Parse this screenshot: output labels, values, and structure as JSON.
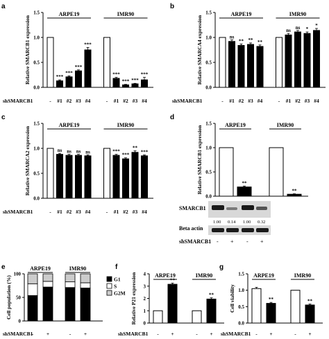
{
  "chart_data": [
    {
      "panel": "a",
      "type": "bar",
      "ylabel": "Relative SMARCB1 expression",
      "ylim": [
        0,
        1.5
      ],
      "yticks": [
        "0.0",
        "0.5",
        "1.0",
        "1.5"
      ],
      "xlabel_row": "shSMARCB1",
      "groups": [
        {
          "name": "ARPE19",
          "categories": [
            "-",
            "#1",
            "#2",
            "#3",
            "#4"
          ],
          "values": [
            1.0,
            0.13,
            0.21,
            0.33,
            0.75
          ],
          "errors": [
            0,
            0.02,
            0.02,
            0.02,
            0.05
          ],
          "annotations": [
            "",
            "***",
            "***",
            "***",
            "***"
          ]
        },
        {
          "name": "IMR90",
          "categories": [
            "-",
            "#1",
            "#2",
            "#3",
            "#4"
          ],
          "values": [
            1.0,
            0.18,
            0.05,
            0.07,
            0.15
          ],
          "errors": [
            0,
            0.02,
            0.01,
            0.01,
            0.05
          ],
          "annotations": [
            "",
            "***",
            "***",
            "***",
            "***"
          ]
        }
      ]
    },
    {
      "panel": "b",
      "type": "bar",
      "ylabel": "Relative SMARCA4 expression",
      "ylim": [
        0,
        1.5
      ],
      "yticks": [
        "0.0",
        "0.5",
        "1.0",
        "1.5"
      ],
      "xlabel_row": "shSMARCB1",
      "groups": [
        {
          "name": "ARPE19",
          "categories": [
            "-",
            "#1",
            "#2",
            "#3",
            "#4"
          ],
          "values": [
            1.0,
            0.92,
            0.84,
            0.86,
            0.82
          ],
          "errors": [
            0,
            0.03,
            0.03,
            0.03,
            0.03
          ],
          "annotations": [
            "",
            "ns",
            "**",
            "**",
            "**"
          ]
        },
        {
          "name": "IMR90",
          "categories": [
            "-",
            "#1",
            "#2",
            "#3",
            "#4"
          ],
          "values": [
            1.0,
            1.05,
            1.11,
            1.08,
            1.14
          ],
          "errors": [
            0,
            0.03,
            0.03,
            0.03,
            0.04
          ],
          "annotations": [
            "",
            "ns",
            "ns",
            "*",
            "*"
          ]
        }
      ]
    },
    {
      "panel": "c",
      "type": "bar",
      "ylabel": "Relative SMARCA2 expression",
      "ylim": [
        0,
        1.5
      ],
      "yticks": [
        "0.0",
        "0.5",
        "1.0",
        "1.5"
      ],
      "xlabel_row": "shSMARCB1",
      "groups": [
        {
          "name": "ARPE19",
          "categories": [
            "-",
            "#1",
            "#2",
            "#3",
            "#4"
          ],
          "values": [
            1.0,
            0.88,
            0.86,
            0.86,
            0.85
          ],
          "errors": [
            0,
            0.02,
            0.02,
            0.02,
            0.02
          ],
          "annotations": [
            "",
            "ns",
            "ns",
            "ns",
            "ns"
          ]
        },
        {
          "name": "IMR90",
          "categories": [
            "-",
            "#1",
            "#2",
            "#3",
            "#4"
          ],
          "values": [
            1.0,
            0.86,
            0.79,
            0.92,
            0.85
          ],
          "errors": [
            0,
            0.02,
            0.02,
            0.03,
            0.02
          ],
          "annotations": [
            "",
            "***",
            "***",
            "**",
            "***"
          ]
        }
      ]
    },
    {
      "panel": "d",
      "type": "bar",
      "ylabel": "Relative SMARCB1 expression",
      "ylim": [
        0,
        1.5
      ],
      "yticks": [
        "0.0",
        "0.5",
        "1.0",
        "1.5"
      ],
      "groups": [
        {
          "name": "ARPE19",
          "categories": [
            "-",
            "+"
          ],
          "values": [
            1.0,
            0.19
          ],
          "errors": [
            0,
            0.02
          ],
          "annotations": [
            "",
            "**"
          ]
        },
        {
          "name": "IMR90",
          "categories": [
            "-",
            "+"
          ],
          "values": [
            1.0,
            0.04
          ],
          "errors": [
            0,
            0.01
          ],
          "annotations": [
            "",
            "**"
          ]
        }
      ]
    },
    {
      "panel": "e",
      "type": "stacked_bar",
      "ylabel": "Cell population (%)",
      "ylim": [
        0,
        100
      ],
      "yticks": [
        "0",
        "50",
        "100"
      ],
      "xlabel_row": "shSMARCB1",
      "legend": [
        "G1",
        "S",
        "G2M"
      ],
      "groups": [
        {
          "name": "ARPE19",
          "categories": [
            "-",
            "+"
          ],
          "stacks": [
            {
              "G1": 54,
              "S": 25,
              "G2M": 21
            },
            {
              "G1": 72,
              "S": 12,
              "G2M": 16
            }
          ]
        },
        {
          "name": "IMR90",
          "categories": [
            "-",
            "+"
          ],
          "stacks": [
            {
              "G1": 71,
              "S": 12,
              "G2M": 17
            },
            {
              "G1": 70,
              "S": 11,
              "G2M": 19
            }
          ]
        }
      ]
    },
    {
      "panel": "f",
      "type": "bar",
      "ylabel": "Relative P21 expression",
      "ylim": [
        0,
        4
      ],
      "yticks": [
        "0",
        "1",
        "2",
        "3",
        "4"
      ],
      "xlabel_row": "shSMARCB1",
      "groups": [
        {
          "name": "ARPE19",
          "categories": [
            "-",
            "+"
          ],
          "values": [
            1.0,
            3.15
          ],
          "errors": [
            0,
            0.1
          ],
          "annotations": [
            "",
            "**"
          ]
        },
        {
          "name": "IMR90",
          "categories": [
            "-",
            "+"
          ],
          "values": [
            1.0,
            1.95
          ],
          "errors": [
            0,
            0.1
          ],
          "annotations": [
            "",
            "**"
          ]
        }
      ]
    },
    {
      "panel": "g",
      "type": "bar",
      "ylabel": "Cell viability",
      "ylim": [
        0,
        1.5
      ],
      "yticks": [
        "0.0",
        "0.5",
        "1.0",
        "1.5"
      ],
      "xlabel_row": "shSMARCB1",
      "groups": [
        {
          "name": "ARPE19",
          "categories": [
            "-",
            "+"
          ],
          "values": [
            1.05,
            0.6
          ],
          "errors": [
            0.04,
            0.03
          ],
          "annotations": [
            "",
            "**"
          ]
        },
        {
          "name": "IMR90",
          "categories": [
            "-",
            "+"
          ],
          "values": [
            1.0,
            0.55
          ],
          "errors": [
            0,
            0.03
          ],
          "annotations": [
            "",
            "**"
          ]
        }
      ]
    }
  ],
  "panel_d_blot": {
    "rows": [
      "SMARCB1",
      "Beta actin"
    ],
    "quantification": [
      "1.00",
      "0.14",
      "1.00",
      "0.32"
    ],
    "treatment_label": "shSMARCB1",
    "treatments": [
      "-",
      "+",
      "-",
      "+"
    ]
  }
}
